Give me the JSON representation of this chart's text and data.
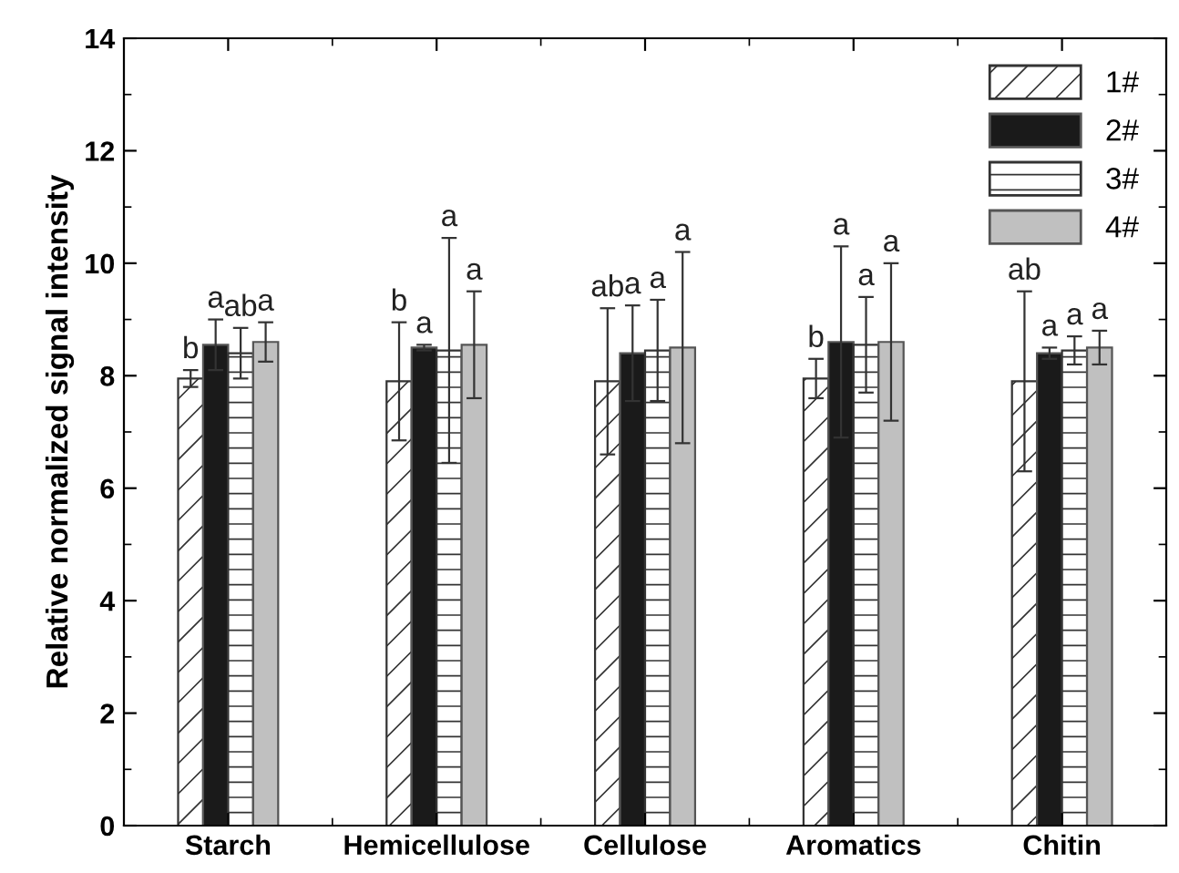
{
  "chart_data": {
    "type": "bar",
    "ylabel": "Relative normalized signal intensity",
    "categories": [
      "Starch",
      "Hemicellulose",
      "Cellulose",
      "Aromatics",
      "Chitin"
    ],
    "series": [
      {
        "name": "1#",
        "color": "#ffffff",
        "values": [
          7.95,
          7.9,
          7.9,
          7.95,
          7.9
        ],
        "errors": [
          0.15,
          1.05,
          1.3,
          0.35,
          1.6
        ]
      },
      {
        "name": "2#",
        "color": "#1a1a1a",
        "values": [
          8.55,
          8.5,
          8.4,
          8.6,
          8.4
        ],
        "errors": [
          0.45,
          0.05,
          0.85,
          1.7,
          0.1
        ]
      },
      {
        "name": "3#",
        "color": "#ffffff",
        "values": [
          8.4,
          8.45,
          8.45,
          8.55,
          8.45
        ],
        "errors": [
          0.45,
          2.0,
          0.9,
          0.85,
          0.25
        ]
      },
      {
        "name": "4#",
        "color": "#c0c0c0",
        "values": [
          8.6,
          8.55,
          8.5,
          8.6,
          8.5
        ],
        "errors": [
          0.35,
          0.95,
          1.7,
          1.4,
          0.3
        ]
      }
    ],
    "annotations": [
      "b",
      "b",
      "ab",
      "b",
      "ab",
      "a",
      "a",
      "a",
      "a",
      "a",
      "ab",
      "a",
      "a",
      "a",
      "a",
      "a",
      "a",
      "a",
      "a",
      "a"
    ],
    "ylim": [
      0,
      14
    ],
    "yticks": [
      0,
      2,
      4,
      6,
      8,
      10,
      12,
      14
    ],
    "grid": false,
    "legend": "top right"
  }
}
